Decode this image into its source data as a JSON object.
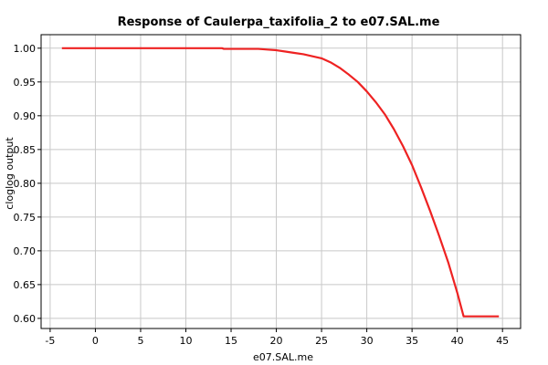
{
  "chart_data": {
    "type": "line",
    "title": "Response of Caulerpa_taxifolia_2 to e07.SAL.me",
    "xlabel": "e07.SAL.me",
    "ylabel": "cloglog output",
    "xlim": [
      -6,
      47
    ],
    "ylim": [
      0.585,
      1.02
    ],
    "x_ticks": [
      -5,
      0,
      5,
      10,
      15,
      20,
      25,
      30,
      35,
      40,
      45
    ],
    "y_ticks": [
      0.6,
      0.65,
      0.7,
      0.75,
      0.8,
      0.85,
      0.9,
      0.95,
      1.0
    ],
    "y_tick_labels": [
      "0.60",
      "0.65",
      "0.70",
      "0.75",
      "0.80",
      "0.85",
      "0.90",
      "0.95",
      "1.00"
    ],
    "grid": true,
    "series": [
      {
        "color": "#ee2222",
        "x": [
          -3.7,
          0,
          5,
          10,
          14,
          14.2,
          18,
          19,
          20,
          21,
          22,
          23,
          24,
          25,
          26,
          27,
          28,
          29,
          30,
          31,
          32,
          33,
          34,
          35,
          36,
          37,
          38,
          39,
          40,
          40.7,
          44.6
        ],
        "y": [
          1.0,
          1.0,
          1.0,
          1.0,
          1.0,
          0.999,
          0.999,
          0.998,
          0.997,
          0.995,
          0.993,
          0.991,
          0.988,
          0.985,
          0.979,
          0.971,
          0.961,
          0.95,
          0.936,
          0.92,
          0.902,
          0.88,
          0.855,
          0.827,
          0.794,
          0.759,
          0.722,
          0.683,
          0.638,
          0.603,
          0.603
        ]
      }
    ]
  }
}
